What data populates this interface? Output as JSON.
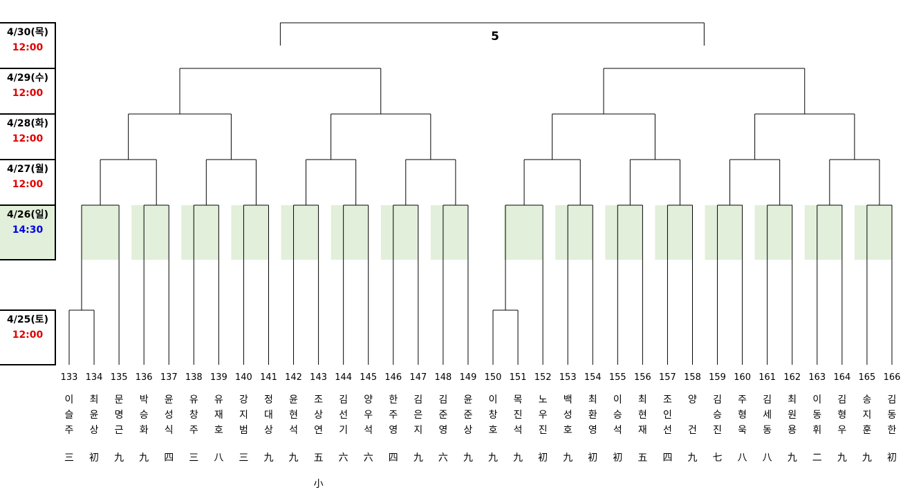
{
  "final_label": "5",
  "rounds": [
    {
      "date": "4/30(목)",
      "time": "12:00",
      "time_color": "#e00000"
    },
    {
      "date": "4/29(수)",
      "time": "12:00",
      "time_color": "#e00000"
    },
    {
      "date": "4/28(화)",
      "time": "12:00",
      "time_color": "#e00000"
    },
    {
      "date": "4/27(월)",
      "time": "12:00",
      "time_color": "#e00000"
    },
    {
      "date": "4/26(일)",
      "time": "14:30",
      "time_color": "#0000e0"
    },
    {
      "date": "4/25(토)",
      "time": "12:00",
      "time_color": "#e00000"
    }
  ],
  "colors": {
    "highlight": "#e2efda",
    "line": "#000000"
  },
  "players": [
    {
      "num": "133",
      "name": [
        "이",
        "슬",
        "주"
      ],
      "rank": "三"
    },
    {
      "num": "134",
      "name": [
        "최",
        "윤",
        "상"
      ],
      "rank": "初"
    },
    {
      "num": "135",
      "name": [
        "문",
        "명",
        "근"
      ],
      "rank": "九"
    },
    {
      "num": "136",
      "name": [
        "박",
        "승",
        "화"
      ],
      "rank": "九"
    },
    {
      "num": "137",
      "name": [
        "윤",
        "성",
        "식"
      ],
      "rank": "四"
    },
    {
      "num": "138",
      "name": [
        "유",
        "창",
        "주"
      ],
      "rank": "三"
    },
    {
      "num": "139",
      "name": [
        "유",
        "재",
        "호"
      ],
      "rank": "八"
    },
    {
      "num": "140",
      "name": [
        "강",
        "지",
        "범"
      ],
      "rank": "三"
    },
    {
      "num": "141",
      "name": [
        "정",
        "대",
        "상"
      ],
      "rank": "九"
    },
    {
      "num": "142",
      "name": [
        "윤",
        "현",
        "석"
      ],
      "rank": "九"
    },
    {
      "num": "143",
      "name": [
        "조",
        "상",
        "연"
      ],
      "rank": "五",
      "note": "小"
    },
    {
      "num": "144",
      "name": [
        "김",
        "선",
        "기"
      ],
      "rank": "六"
    },
    {
      "num": "145",
      "name": [
        "양",
        "우",
        "석"
      ],
      "rank": "六"
    },
    {
      "num": "146",
      "name": [
        "한",
        "주",
        "영"
      ],
      "rank": "四"
    },
    {
      "num": "147",
      "name": [
        "김",
        "은",
        "지"
      ],
      "rank": "九"
    },
    {
      "num": "148",
      "name": [
        "김",
        "준",
        "영"
      ],
      "rank": "六"
    },
    {
      "num": "149",
      "name": [
        "윤",
        "준",
        "상"
      ],
      "rank": "九"
    },
    {
      "num": "150",
      "name": [
        "이",
        "창",
        "호"
      ],
      "rank": "九"
    },
    {
      "num": "151",
      "name": [
        "목",
        "진",
        "석"
      ],
      "rank": "九"
    },
    {
      "num": "152",
      "name": [
        "노",
        "우",
        "진"
      ],
      "rank": "初"
    },
    {
      "num": "153",
      "name": [
        "백",
        "성",
        "호"
      ],
      "rank": "九"
    },
    {
      "num": "154",
      "name": [
        "최",
        "환",
        "영"
      ],
      "rank": "初"
    },
    {
      "num": "155",
      "name": [
        "이",
        "승",
        "석"
      ],
      "rank": "初"
    },
    {
      "num": "156",
      "name": [
        "최",
        "현",
        "재"
      ],
      "rank": "五"
    },
    {
      "num": "157",
      "name": [
        "조",
        "인",
        "선"
      ],
      "rank": "四"
    },
    {
      "num": "158",
      "name": [
        "양",
        "",
        "건"
      ],
      "rank": "九"
    },
    {
      "num": "159",
      "name": [
        "김",
        "승",
        "진"
      ],
      "rank": "七"
    },
    {
      "num": "160",
      "name": [
        "주",
        "형",
        "욱"
      ],
      "rank": "八"
    },
    {
      "num": "161",
      "name": [
        "김",
        "세",
        "동"
      ],
      "rank": "八"
    },
    {
      "num": "162",
      "name": [
        "최",
        "원",
        "용"
      ],
      "rank": "九"
    },
    {
      "num": "163",
      "name": [
        "이",
        "동",
        "휘"
      ],
      "rank": "二"
    },
    {
      "num": "164",
      "name": [
        "김",
        "형",
        "우"
      ],
      "rank": "九"
    },
    {
      "num": "165",
      "name": [
        "송",
        "지",
        "훈"
      ],
      "rank": "九"
    },
    {
      "num": "166",
      "name": [
        "김",
        "동",
        "한"
      ],
      "rank": "初"
    }
  ]
}
